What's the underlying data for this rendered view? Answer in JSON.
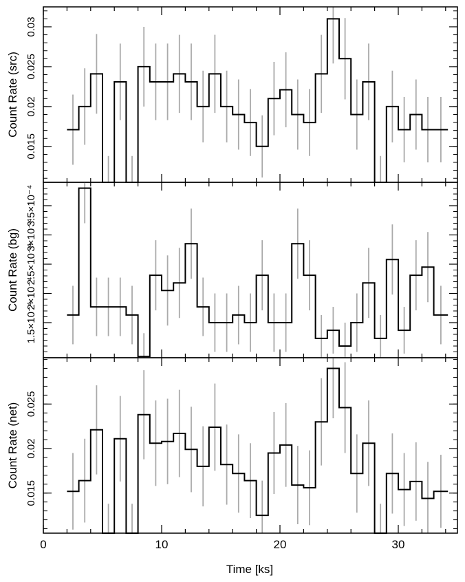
{
  "chart_data": [
    {
      "panel": "src",
      "type": "step-line",
      "ylabel": "Count Rate (src)",
      "ylim": [
        0.0105,
        0.0325
      ],
      "yticks": [
        0.015,
        0.02,
        0.025,
        0.03
      ],
      "ytick_labels": [
        "0.015",
        "0.02",
        "0.025",
        "0.03"
      ],
      "series": [
        {
          "bins": [
            [
              2.0,
              3.0,
              0.0171,
              0.0044
            ],
            [
              3.0,
              4.0,
              0.02,
              0.0048
            ],
            [
              4.0,
              5.0,
              0.0241,
              0.005
            ],
            [
              5.0,
              6.0,
              0.0105,
              0.0033
            ],
            [
              6.0,
              7.0,
              0.0231,
              0.0048
            ],
            [
              7.0,
              8.0,
              0.0105,
              0.0033
            ],
            [
              8.0,
              9.0,
              0.025,
              0.005
            ],
            [
              9.0,
              10.0,
              0.0231,
              0.0048
            ],
            [
              10.0,
              11.0,
              0.0231,
              0.0048
            ],
            [
              11.0,
              12.0,
              0.0241,
              0.0049
            ],
            [
              12.0,
              13.0,
              0.0231,
              0.0048
            ],
            [
              13.0,
              14.0,
              0.02,
              0.0045
            ],
            [
              14.0,
              15.0,
              0.0241,
              0.0049
            ],
            [
              15.0,
              16.0,
              0.02,
              0.0045
            ],
            [
              16.0,
              17.0,
              0.019,
              0.0044
            ],
            [
              17.0,
              18.0,
              0.018,
              0.0042
            ],
            [
              18.0,
              19.0,
              0.015,
              0.0039
            ],
            [
              19.0,
              20.0,
              0.021,
              0.0046
            ],
            [
              20.0,
              21.0,
              0.0221,
              0.0047
            ],
            [
              21.0,
              22.0,
              0.019,
              0.0044
            ],
            [
              22.0,
              23.0,
              0.018,
              0.0042
            ],
            [
              23.0,
              24.0,
              0.0241,
              0.0049
            ],
            [
              24.0,
              25.0,
              0.031,
              0.0056
            ],
            [
              25.0,
              26.0,
              0.026,
              0.0051
            ],
            [
              26.0,
              27.0,
              0.019,
              0.0044
            ],
            [
              27.0,
              28.0,
              0.0231,
              0.0048
            ],
            [
              28.0,
              29.0,
              0.0105,
              0.0033
            ],
            [
              29.0,
              30.0,
              0.02,
              0.0045
            ],
            [
              30.0,
              31.0,
              0.0171,
              0.0041
            ],
            [
              31.0,
              32.0,
              0.019,
              0.0044
            ],
            [
              32.0,
              33.0,
              0.0171,
              0.0041
            ],
            [
              33.0,
              34.2,
              0.0171,
              0.0041
            ]
          ]
        }
      ]
    },
    {
      "panel": "bg",
      "type": "step-line",
      "ylabel": "Count Rate (bg)",
      "ylim": [
        9e-05,
        0.00039
      ],
      "yticks": [
        0.00015,
        0.0002,
        0.00025,
        0.0003,
        0.00035
      ],
      "ytick_labels": [
        "1.5×10⁻⁴",
        "2×10⁻⁴",
        "2.5×10⁻⁴",
        "3×10⁻⁴",
        "3.5×10⁻⁴"
      ],
      "series": [
        {
          "bins": [
            [
              2.0,
              3.0,
              0.000163,
              5e-05
            ],
            [
              3.0,
              4.0,
              0.00038,
              6e-05
            ],
            [
              4.0,
              5.0,
              0.000177,
              5e-05
            ],
            [
              5.0,
              6.0,
              0.000177,
              5e-05
            ],
            [
              6.0,
              7.0,
              0.000177,
              5e-05
            ],
            [
              7.0,
              8.0,
              0.000163,
              5e-05
            ],
            [
              8.0,
              9.0,
              9.2e-05,
              4e-05
            ],
            [
              9.0,
              10.0,
              0.000231,
              6e-05
            ],
            [
              10.0,
              11.0,
              0.000205,
              6e-05
            ],
            [
              11.0,
              12.0,
              0.000218,
              6e-05
            ],
            [
              12.0,
              13.0,
              0.000285,
              6e-05
            ],
            [
              13.0,
              14.0,
              0.000177,
              5e-05
            ],
            [
              14.0,
              15.0,
              0.00015,
              5e-05
            ],
            [
              15.0,
              16.0,
              0.00015,
              5e-05
            ],
            [
              16.0,
              17.0,
              0.000163,
              5e-05
            ],
            [
              17.0,
              18.0,
              0.00015,
              5e-05
            ],
            [
              18.0,
              19.0,
              0.000231,
              6e-05
            ],
            [
              19.0,
              20.0,
              0.00015,
              5e-05
            ],
            [
              20.0,
              21.0,
              0.00015,
              5e-05
            ],
            [
              21.0,
              22.0,
              0.000285,
              6e-05
            ],
            [
              22.0,
              23.0,
              0.000231,
              6e-05
            ],
            [
              23.0,
              24.0,
              0.000123,
              4e-05
            ],
            [
              24.0,
              25.0,
              0.000137,
              4e-05
            ],
            [
              25.0,
              26.0,
              0.00011,
              4e-05
            ],
            [
              26.0,
              27.0,
              0.00015,
              5e-05
            ],
            [
              27.0,
              28.0,
              0.000218,
              6e-05
            ],
            [
              28.0,
              29.0,
              0.000123,
              4e-05
            ],
            [
              29.0,
              30.0,
              0.000258,
              6e-05
            ],
            [
              30.0,
              31.0,
              0.000137,
              4e-05
            ],
            [
              31.0,
              32.0,
              0.000231,
              6e-05
            ],
            [
              32.0,
              33.0,
              0.000245,
              6e-05
            ],
            [
              33.0,
              34.2,
              0.000163,
              5e-05
            ]
          ]
        }
      ]
    },
    {
      "panel": "net",
      "type": "step-line",
      "xlabel": "Time [ks]",
      "ylabel": "Count Rate (net)",
      "ylim": [
        0.0105,
        0.0302
      ],
      "yticks": [
        0.015,
        0.02,
        0.025
      ],
      "ytick_labels": [
        "0.015",
        "0.02",
        "0.025"
      ],
      "series": [
        {
          "bins": [
            [
              2.0,
              3.0,
              0.0152,
              0.0043
            ],
            [
              3.0,
              4.0,
              0.0164,
              0.0047
            ],
            [
              4.0,
              5.0,
              0.0221,
              0.005
            ],
            [
              5.0,
              6.0,
              0.0105,
              0.0033
            ],
            [
              6.0,
              7.0,
              0.0211,
              0.0048
            ],
            [
              7.0,
              8.0,
              0.0105,
              0.0033
            ],
            [
              8.0,
              9.0,
              0.0238,
              0.005
            ],
            [
              9.0,
              10.0,
              0.0206,
              0.0048
            ],
            [
              10.0,
              11.0,
              0.0208,
              0.0048
            ],
            [
              11.0,
              12.0,
              0.0217,
              0.0049
            ],
            [
              12.0,
              13.0,
              0.0199,
              0.0048
            ],
            [
              13.0,
              14.0,
              0.018,
              0.0045
            ],
            [
              14.0,
              15.0,
              0.0224,
              0.0049
            ],
            [
              15.0,
              16.0,
              0.0182,
              0.0045
            ],
            [
              16.0,
              17.0,
              0.0172,
              0.0044
            ],
            [
              17.0,
              18.0,
              0.0164,
              0.0042
            ],
            [
              18.0,
              19.0,
              0.0125,
              0.0039
            ],
            [
              19.0,
              20.0,
              0.0195,
              0.0046
            ],
            [
              20.0,
              21.0,
              0.0204,
              0.0047
            ],
            [
              21.0,
              22.0,
              0.0159,
              0.0044
            ],
            [
              22.0,
              23.0,
              0.0156,
              0.0042
            ],
            [
              23.0,
              24.0,
              0.023,
              0.0049
            ],
            [
              24.0,
              25.0,
              0.029,
              0.0056
            ],
            [
              25.0,
              26.0,
              0.0246,
              0.0051
            ],
            [
              26.0,
              27.0,
              0.0172,
              0.0044
            ],
            [
              27.0,
              28.0,
              0.0206,
              0.0048
            ],
            [
              28.0,
              29.0,
              0.0105,
              0.0033
            ],
            [
              29.0,
              30.0,
              0.0172,
              0.0045
            ],
            [
              30.0,
              31.0,
              0.0154,
              0.0041
            ],
            [
              31.0,
              32.0,
              0.0163,
              0.0044
            ],
            [
              32.0,
              33.0,
              0.0144,
              0.0041
            ],
            [
              33.0,
              34.2,
              0.0152,
              0.0041
            ]
          ]
        }
      ]
    }
  ],
  "x_axis": {
    "label": "Time [ks]",
    "xlim": [
      0,
      35
    ],
    "ticks": [
      0,
      10,
      20,
      30
    ],
    "tick_labels": [
      "0",
      "10",
      "20",
      "30"
    ],
    "minor_step": 2
  },
  "colors": {
    "data": "#000000",
    "error_bars": "#aaaaaa",
    "axes": "#000000"
  }
}
